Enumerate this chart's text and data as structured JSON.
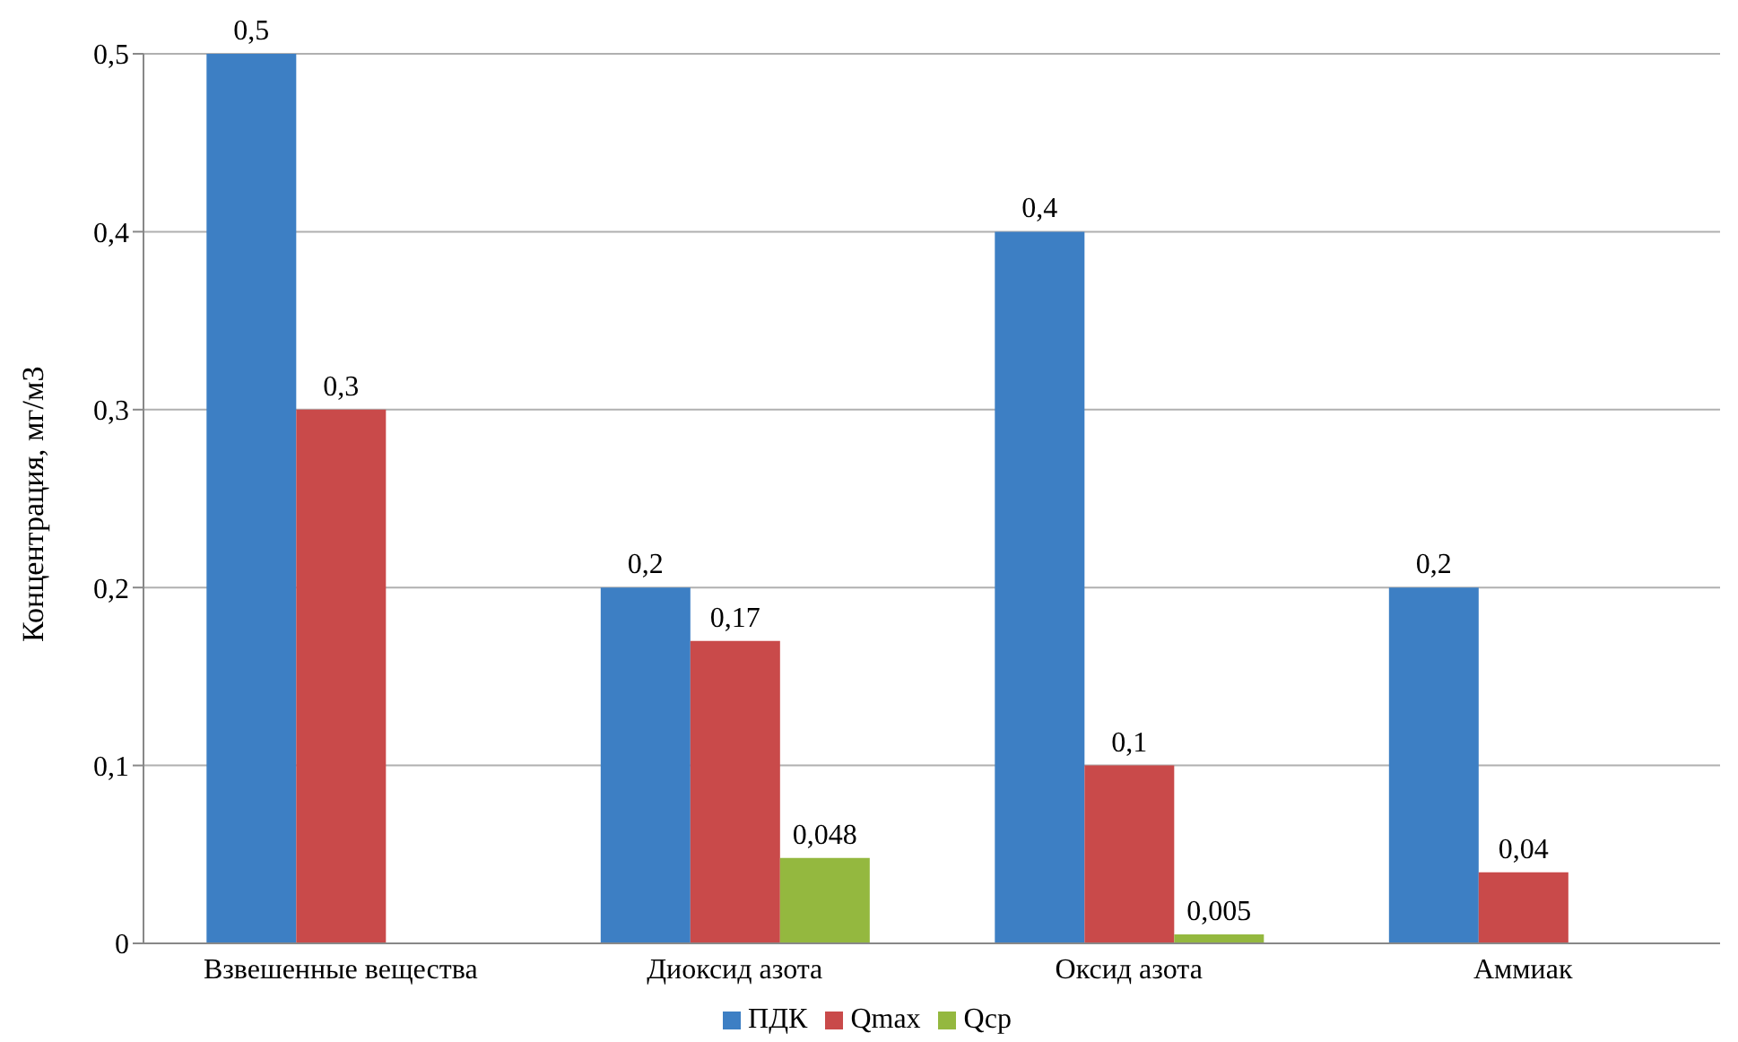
{
  "chart_data": {
    "type": "bar",
    "ylabel": "Концентрация, мг/м3",
    "categories": [
      "Взвешенные вещества",
      "Диоксид азота",
      "Оксид азота",
      "Аммиак"
    ],
    "series": [
      {
        "name": "ПДК",
        "color": "#3d7fc4",
        "values": [
          0.5,
          0.2,
          0.4,
          0.2
        ],
        "value_labels": [
          "0,5",
          "0,2",
          "0,4",
          "0,2"
        ]
      },
      {
        "name": "Qmax",
        "color": "#c94a4a",
        "values": [
          0.3,
          0.17,
          0.1,
          0.04
        ],
        "value_labels": [
          "0,3",
          "0,17",
          "0,1",
          "0,04"
        ]
      },
      {
        "name": "Qср",
        "color": "#94b83f",
        "values": [
          null,
          0.048,
          0.005,
          null
        ],
        "value_labels": [
          null,
          "0,048",
          "0,005",
          null
        ]
      }
    ],
    "ylim": [
      0,
      0.5
    ],
    "yticks": [
      0,
      {
        "value": 0.1,
        "label": "0,1"
      },
      {
        "value": 0.2,
        "label": "0,2"
      },
      {
        "value": 0.3,
        "label": "0,3"
      },
      {
        "value": 0.4,
        "label": "0,4"
      },
      {
        "value": 0.5,
        "label": "0,5"
      }
    ],
    "grid": "y",
    "legend": "bottom"
  }
}
